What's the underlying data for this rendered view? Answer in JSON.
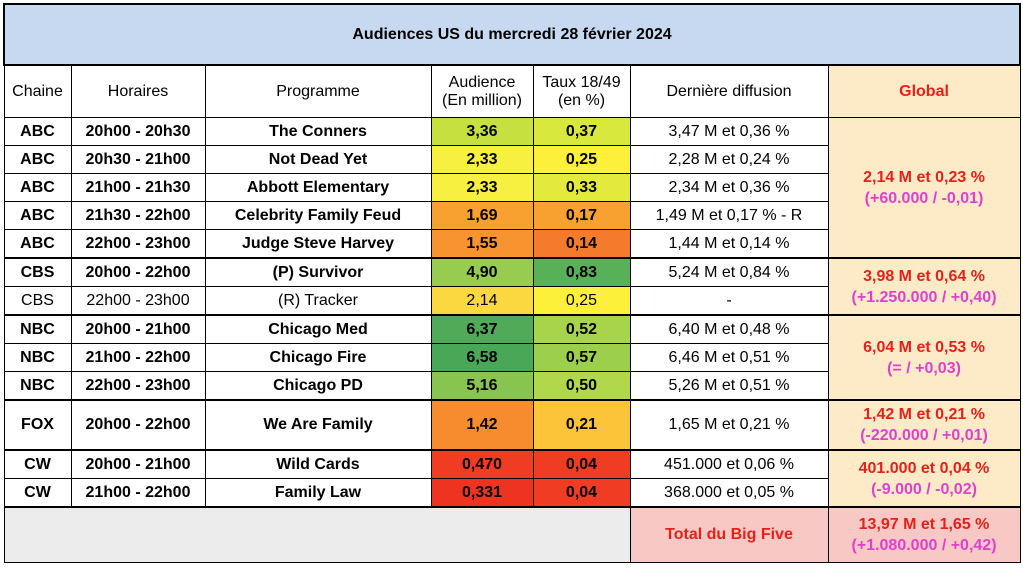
{
  "title": "Audiences US du mercredi 28 février 2024",
  "headers": {
    "chaine": "Chaine",
    "horaires": "Horaires",
    "programme": "Programme",
    "audience_l1": "Audience",
    "audience_l2": "(En million)",
    "taux_l1": "Taux 18/49",
    "taux_l2": "(en %)",
    "derniere": "Dernière diffusion",
    "global": "Global"
  },
  "rows": [
    {
      "chaine": "ABC",
      "horaires": "20h00 - 20h30",
      "programme": "The Conners",
      "audience": "3,36",
      "taux": "0,37",
      "derniere": "3,47 M et 0,36 %",
      "aud_color": "#c6e040",
      "taux_color": "#d8e83c",
      "bold": true
    },
    {
      "chaine": "ABC",
      "horaires": "20h30 - 21h00",
      "programme": "Not Dead Yet",
      "audience": "2,33",
      "taux": "0,25",
      "derniere": "2,28 M et 0,24 %",
      "aud_color": "#f8f040",
      "taux_color": "#fcf03a",
      "bold": true
    },
    {
      "chaine": "ABC",
      "horaires": "21h00 - 21h30",
      "programme": "Abbott Elementary",
      "audience": "2,33",
      "taux": "0,33",
      "derniere": "2,34 M et 0,36 %",
      "aud_color": "#f8f040",
      "taux_color": "#e4ea3c",
      "bold": true
    },
    {
      "chaine": "ABC",
      "horaires": "21h30 - 22h00",
      "programme": "Celebrity Family Feud",
      "audience": "1,69",
      "taux": "0,17",
      "derniere": "1,49 M et 0,17 % - R",
      "aud_color": "#f8a030",
      "taux_color": "#f8a030",
      "bold": true
    },
    {
      "chaine": "ABC",
      "horaires": "22h00 - 23h00",
      "programme": "Judge Steve Harvey",
      "audience": "1,55",
      "taux": "0,14",
      "derniere": "1,44 M et 0,14 %",
      "aud_color": "#f89430",
      "taux_color": "#f47a2c",
      "bold": true
    },
    {
      "chaine": "CBS",
      "horaires": "20h00 - 22h00",
      "programme": "(P) Survivor",
      "audience": "4,90",
      "taux": "0,83",
      "derniere": "5,24 M et 0,84 %",
      "aud_color": "#98cc50",
      "taux_color": "#58b058",
      "bold": true
    },
    {
      "chaine": "CBS",
      "horaires": "22h00 - 23h00",
      "programme": "(R) Tracker",
      "audience": "2,14",
      "taux": "0,25",
      "derniere": "-",
      "aud_color": "#fcd840",
      "taux_color": "#fcf03a",
      "bold": false
    },
    {
      "chaine": "NBC",
      "horaires": "20h00 - 21h00",
      "programme": "Chicago Med",
      "audience": "6,37",
      "taux": "0,52",
      "derniere": "6,40 M et 0,48 %",
      "aud_color": "#50aa58",
      "taux_color": "#a8d44c",
      "bold": true
    },
    {
      "chaine": "NBC",
      "horaires": "21h00 - 22h00",
      "programme": "Chicago Fire",
      "audience": "6,58",
      "taux": "0,57",
      "derniere": "6,46 M et 0,51 %",
      "aud_color": "#48a858",
      "taux_color": "#9cd04c",
      "bold": true
    },
    {
      "chaine": "NBC",
      "horaires": "22h00 - 23h00",
      "programme": "Chicago PD",
      "audience": "5,16",
      "taux": "0,50",
      "derniere": "5,26 M et 0,51 %",
      "aud_color": "#88c450",
      "taux_color": "#b0d84a",
      "bold": true
    },
    {
      "chaine": "FOX",
      "horaires": "20h00 - 22h00",
      "programme": "We Are Family",
      "audience": "1,42",
      "taux": "0,21",
      "derniere": "1,65 M et 0,21 %",
      "aud_color": "#f68c2e",
      "taux_color": "#fcc438",
      "bold": true
    },
    {
      "chaine": "CW",
      "horaires": "20h00 - 21h00",
      "programme": "Wild Cards",
      "audience": "0,470",
      "taux": "0,04",
      "derniere": "451.000 et 0,06 %",
      "aud_color": "#f03c22",
      "taux_color": "#f03c22",
      "bold": true
    },
    {
      "chaine": "CW",
      "horaires": "21h00 - 22h00",
      "programme": "Family Law",
      "audience": "0,331",
      "taux": "0,04",
      "derniere": "368.000 et 0,05 %",
      "aud_color": "#ee3420",
      "taux_color": "#f03c22",
      "bold": true
    }
  ],
  "globals": {
    "abc_l1": "2,14 M et 0,23 %",
    "abc_l2": "(+60.000 / -0,01)",
    "cbs_l1": "3,98 M et 0,64 %",
    "cbs_l2": "(+1.250.000 / +0,40)",
    "nbc_l1": "6,04 M et 0,53 %",
    "nbc_l2": "(= / +0,03)",
    "fox_l1": "1,42 M et 0,21 %",
    "fox_l2": "(-220.000 / +0,01)",
    "cw_l1": "401.000 et 0,04 %",
    "cw_l2": "(-9.000 / -0,02)"
  },
  "total": {
    "label": "Total du Big Five",
    "l1": "13,97 M et 1,65 %",
    "l2": "(+1.080.000 / +0,42)"
  }
}
